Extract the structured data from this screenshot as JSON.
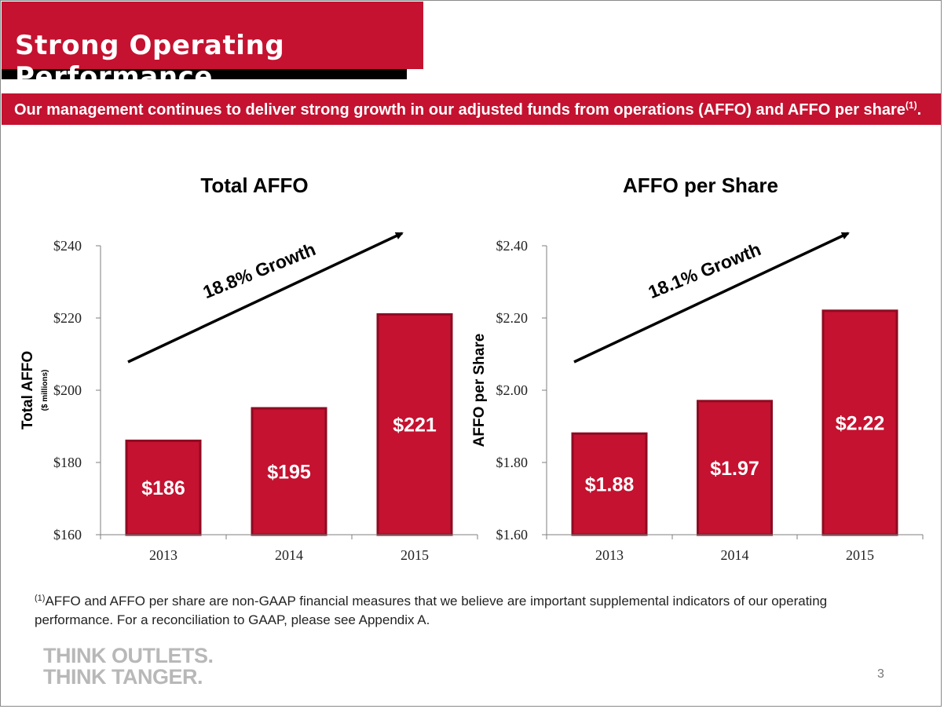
{
  "header": {
    "title": "Strong Operating Performance",
    "subtitle": "Our management continues to deliver strong growth in our adjusted funds from operations (AFFO) and AFFO per share",
    "subtitle_footnote_mark": "(1)",
    "subtitle_end": "."
  },
  "colors": {
    "brand_red": "#c41230",
    "bar_fill": "#c41230",
    "bar_border": "#8e0b22",
    "banner_shadow": "#000000"
  },
  "chart_data": [
    {
      "type": "bar",
      "title": "Total AFFO",
      "ylabel": "Total AFFO",
      "ylabel_sub": "($ millions)",
      "categories": [
        "2013",
        "2014",
        "2015"
      ],
      "values": [
        186,
        195,
        221
      ],
      "data_labels": [
        "$186",
        "$195",
        "$221"
      ],
      "ylim": [
        160,
        240
      ],
      "yticks": [
        160,
        180,
        200,
        220,
        240
      ],
      "ytick_labels": [
        "$160",
        "$180",
        "$200",
        "$220",
        "$240"
      ],
      "annotation": "18.8% Growth",
      "grid": false,
      "legend": "none"
    },
    {
      "type": "bar",
      "title": "AFFO per Share",
      "ylabel": "AFFO per Share",
      "categories": [
        "2013",
        "2014",
        "2015"
      ],
      "values": [
        1.88,
        1.97,
        2.22
      ],
      "data_labels": [
        "$1.88",
        "$1.97",
        "$2.22"
      ],
      "ylim": [
        1.6,
        2.4
      ],
      "yticks": [
        1.6,
        1.8,
        2.0,
        2.2,
        2.4
      ],
      "ytick_labels": [
        "$1.60",
        "$1.80",
        "$2.00",
        "$2.20",
        "$2.40"
      ],
      "annotation": "18.1% Growth",
      "grid": false,
      "legend": "none"
    }
  ],
  "footnote": {
    "mark": "(1)",
    "text": "AFFO and AFFO per share are non-GAAP financial measures that we believe are important supplemental indicators of our operating performance.  For a reconciliation to GAAP, please see Appendix A."
  },
  "logo": {
    "line1": "THINK OUTLETS.",
    "line2": "THINK TANGER."
  },
  "page_number": "3"
}
